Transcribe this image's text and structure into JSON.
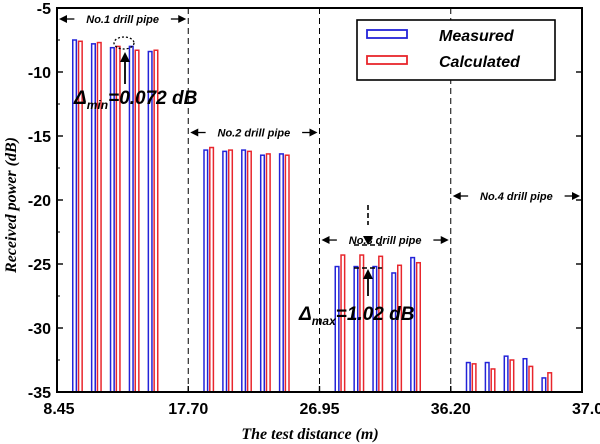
{
  "chart_data": {
    "type": "bar",
    "xlabel": "The test distance (m)",
    "ylabel": "Received power (dB)",
    "ylim": [
      -35,
      -5
    ],
    "yticks": [
      "-5",
      "-10",
      "-15",
      "-20",
      "-25",
      "-30",
      "-35"
    ],
    "xticks": [
      "8.45",
      "17.70",
      "26.95",
      "36.20",
      "37.00"
    ],
    "legend": {
      "position": "top-right",
      "measured": "Measured",
      "calculated": "Calculated"
    },
    "colors": {
      "measured": "#2323d8",
      "calculated": "#e8262c",
      "axis": "#000000"
    },
    "segments": [
      {
        "label": "No.1 drill pipe",
        "measured": [
          -7.5,
          -7.8,
          -8.1,
          -8.0,
          -8.4
        ],
        "calculated": [
          -7.6,
          -7.7,
          -8.0,
          -8.3,
          -8.3
        ]
      },
      {
        "label": "No.2 drill pipe",
        "measured": [
          -16.1,
          -16.2,
          -16.1,
          -16.5,
          -16.4
        ],
        "calculated": [
          -15.9,
          -16.1,
          -16.2,
          -16.4,
          -16.5
        ]
      },
      {
        "label": "No.3 drill pipe",
        "measured": [
          -25.2,
          -25.2,
          -25.2,
          -25.7,
          -24.5
        ],
        "calculated": [
          -24.3,
          -24.3,
          -24.4,
          -25.1,
          -24.9
        ]
      },
      {
        "label": "No.4 drill pipe",
        "measured": [
          -32.7,
          -32.7,
          -32.2,
          -32.4,
          -33.9
        ],
        "calculated": [
          -32.8,
          -33.2,
          -32.5,
          -33.0,
          -33.5
        ]
      }
    ],
    "annotations": {
      "min": {
        "delta": "Δ",
        "subscript": "min",
        "value": "=0.072 dB"
      },
      "max": {
        "delta": "Δ",
        "subscript": "max",
        "value": "=1.02 dB"
      }
    }
  }
}
